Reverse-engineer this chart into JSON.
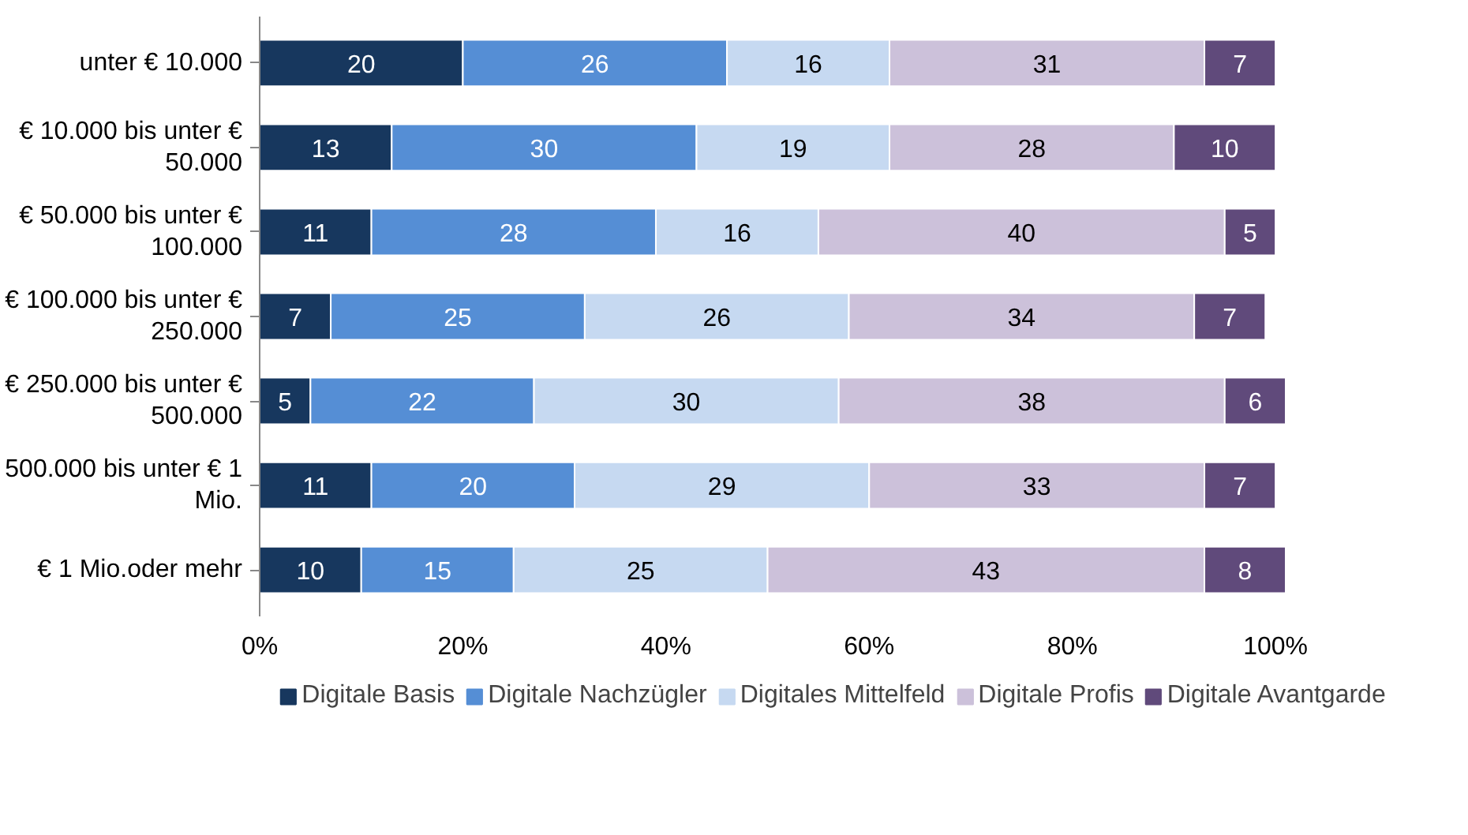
{
  "chart_data": {
    "type": "bar",
    "orientation": "horizontal",
    "stacked": true,
    "data_labels": true,
    "grid": false,
    "legend": "bottom",
    "categories": [
      "unter € 10.000",
      "€ 10.000 bis unter € 50.000",
      "€ 50.000 bis unter € 100.000",
      "€ 100.000 bis unter € 250.000",
      "€ 250.000 bis unter € 500.000",
      "500.000 bis unter € 1 Mio.",
      "€ 1 Mio.oder mehr"
    ],
    "xlim": [
      0,
      101
    ],
    "xticks": [
      {
        "value": 0,
        "label": "0%"
      },
      {
        "value": 20,
        "label": "20%"
      },
      {
        "value": 40,
        "label": "40%"
      },
      {
        "value": 60,
        "label": "60%"
      },
      {
        "value": 80,
        "label": "80%"
      },
      {
        "value": 100,
        "label": "100%"
      }
    ],
    "series": [
      {
        "name": "Digitale Basis",
        "color": "#17375e",
        "values": [
          20,
          13,
          11,
          7,
          5,
          11,
          10
        ]
      },
      {
        "name": "Digitale Nachzügler",
        "color": "#558ed5",
        "values": [
          26,
          30,
          28,
          25,
          22,
          20,
          15
        ]
      },
      {
        "name": "Digitales Mittelfeld",
        "color": "#c6d9f1",
        "values": [
          16,
          19,
          16,
          26,
          30,
          29,
          25
        ]
      },
      {
        "name": "Digitale Profis",
        "color": "#ccc1da",
        "values": [
          31,
          28,
          40,
          34,
          38,
          33,
          43
        ]
      },
      {
        "name": "Digitale Avantgarde",
        "color": "#604a7b",
        "values": [
          7,
          10,
          5,
          7,
          6,
          7,
          8
        ]
      }
    ]
  }
}
